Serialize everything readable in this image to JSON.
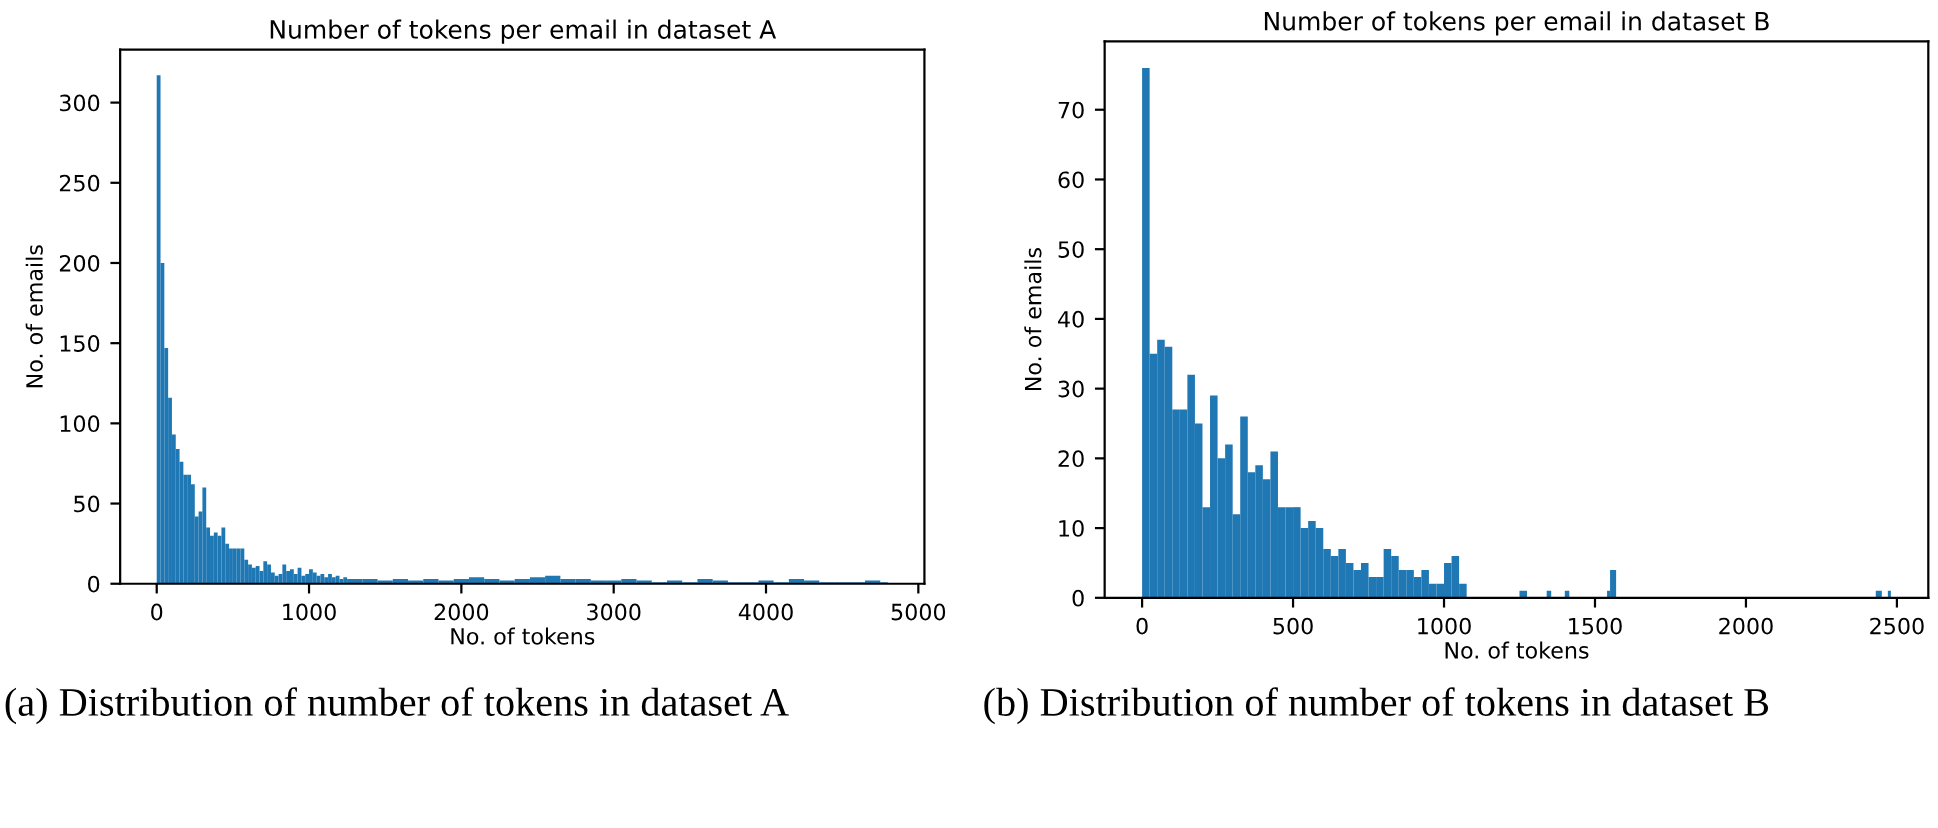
{
  "chart_data": [
    {
      "type": "histogram",
      "title": "Number of tokens per email in dataset A",
      "xlabel": "No. of tokens",
      "ylabel": "No. of emails",
      "color": "#1f77b4",
      "bins": [
        0,
        25,
        50,
        75,
        100,
        125,
        150,
        175,
        200,
        225,
        250,
        275,
        300,
        325,
        350,
        375,
        400,
        425,
        450,
        475,
        500,
        525,
        550,
        575,
        600,
        625,
        650,
        675,
        700,
        725,
        750,
        775,
        800,
        825,
        850,
        875,
        900,
        925,
        950,
        975,
        1000,
        1025,
        1050,
        1075,
        1100,
        1125,
        1150,
        1175,
        1200,
        1225,
        1250,
        1350,
        1450,
        1550,
        1650,
        1750,
        1850,
        1950,
        2050,
        2150,
        2250,
        2350,
        2450,
        2550,
        2650,
        2750,
        2850,
        2950,
        3050,
        3150,
        3250,
        3350,
        3450,
        3550,
        3650,
        3750,
        3850,
        3950,
        4050,
        4150,
        4250,
        4350,
        4450,
        4550,
        4650,
        4750,
        4800
      ],
      "values": [
        317,
        200,
        147,
        116,
        93,
        84,
        76,
        68,
        68,
        62,
        42,
        45,
        60,
        35,
        30,
        32,
        30,
        35,
        25,
        22,
        22,
        22,
        22,
        15,
        12,
        10,
        11,
        8,
        14,
        12,
        7,
        5,
        6,
        12,
        8,
        9,
        6,
        10,
        5,
        6,
        9,
        7,
        5,
        6,
        4,
        6,
        4,
        5,
        3,
        4,
        3,
        3,
        2,
        3,
        2,
        3,
        2,
        3,
        4,
        3,
        2,
        3,
        4,
        5,
        3,
        3,
        2,
        2,
        3,
        2,
        1,
        2,
        1,
        3,
        2,
        1,
        1,
        2,
        1,
        3,
        2,
        1,
        1,
        1,
        2,
        1
      ],
      "xlim": [
        -240,
        5040
      ],
      "ylim": [
        0,
        333
      ],
      "xticks": [
        0,
        1000,
        2000,
        3000,
        4000,
        5000
      ],
      "yticks": [
        0,
        50,
        100,
        150,
        200,
        250,
        300
      ],
      "annotations": [
        "(a) Distribution of number of tokens in dataset A"
      ]
    },
    {
      "type": "histogram",
      "title": "Number of tokens per email in dataset B",
      "xlabel": "No. of tokens",
      "ylabel": "No. of emails",
      "color": "#1f77b4",
      "bins": [
        0,
        25,
        50,
        75,
        100,
        125,
        150,
        175,
        200,
        225,
        250,
        275,
        300,
        325,
        350,
        375,
        400,
        425,
        450,
        475,
        500,
        525,
        550,
        575,
        600,
        625,
        650,
        675,
        700,
        725,
        750,
        775,
        800,
        825,
        850,
        875,
        900,
        925,
        950,
        975,
        1000,
        1025,
        1050,
        1075,
        1250,
        1275,
        1340,
        1355,
        1400,
        1415,
        1540,
        1550,
        1570,
        2430,
        2450,
        2470,
        2480
      ],
      "values": [
        76,
        35,
        37,
        36,
        27,
        27,
        32,
        25,
        13,
        29,
        20,
        22,
        12,
        26,
        18,
        19,
        17,
        21,
        13,
        13,
        13,
        10,
        11,
        10,
        7,
        6,
        7,
        5,
        4,
        5,
        3,
        3,
        7,
        6,
        4,
        4,
        3,
        4,
        2,
        2,
        5,
        6,
        2,
        0,
        1,
        0,
        1,
        0,
        1,
        0,
        1,
        4,
        0,
        1,
        0,
        1
      ],
      "xlim": [
        -124,
        2604
      ],
      "ylim": [
        0,
        79.8
      ],
      "xticks": [
        0,
        500,
        1000,
        1500,
        2000,
        2500
      ],
      "yticks": [
        0,
        10,
        20,
        30,
        40,
        50,
        60,
        70
      ],
      "annotations": [
        "(b) Distribution of number of tokens in dataset B"
      ]
    }
  ]
}
